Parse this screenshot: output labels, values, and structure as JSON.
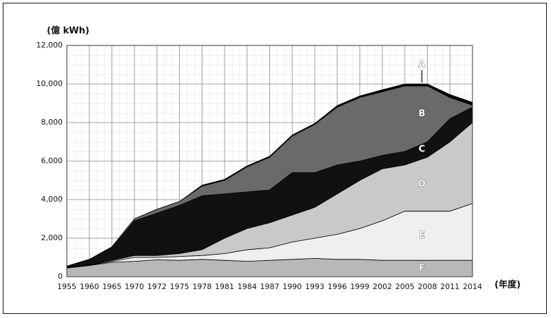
{
  "chart_data": {
    "type": "stacked-area",
    "y_label": "(億 kWh)",
    "x_label": "(年度)",
    "categories": [
      "1955",
      "1960",
      "1965",
      "1970",
      "1972",
      "1975",
      "1978",
      "1981",
      "1984",
      "1987",
      "1990",
      "1993",
      "1996",
      "1999",
      "2002",
      "2005",
      "2008",
      "2011",
      "2014"
    ],
    "series": [
      {
        "name": "F",
        "color": "#b8b8b8",
        "values": [
          450,
          580,
          750,
          800,
          880,
          850,
          900,
          850,
          800,
          850,
          900,
          950,
          900,
          900,
          850,
          850,
          850,
          850,
          850
        ]
      },
      {
        "name": "E",
        "color": "#efefef",
        "values": [
          30,
          20,
          50,
          200,
          120,
          200,
          200,
          350,
          600,
          650,
          900,
          1050,
          1300,
          1600,
          2050,
          2550,
          2550,
          2550,
          2950
        ]
      },
      {
        "name": "D",
        "color": "#c9c9c9",
        "values": [
          20,
          20,
          50,
          100,
          100,
          150,
          300,
          800,
          1100,
          1300,
          1400,
          1600,
          2100,
          2500,
          2700,
          2400,
          2800,
          3600,
          4200
        ]
      },
      {
        "name": "C",
        "color": "#111111",
        "values": [
          50,
          280,
          650,
          1800,
          2200,
          2500,
          2800,
          2300,
          1900,
          1700,
          2200,
          1800,
          1500,
          1000,
          700,
          700,
          800,
          1200,
          800
        ]
      },
      {
        "name": "B",
        "color": "#6a6a6a",
        "values": [
          0,
          0,
          50,
          100,
          200,
          200,
          500,
          700,
          1300,
          1700,
          1900,
          2500,
          3000,
          3300,
          3300,
          3400,
          2900,
          1100,
          100
        ]
      },
      {
        "name": "A",
        "color": "#000000",
        "values": [
          0,
          0,
          0,
          0,
          0,
          0,
          50,
          50,
          50,
          50,
          50,
          50,
          80,
          80,
          100,
          100,
          100,
          150,
          150
        ]
      }
    ],
    "ylim": [
      0,
      12000
    ],
    "yticks": [
      0,
      {
        "value": 2000,
        "label": "2,000"
      },
      {
        "value": 4000,
        "label": "4,000"
      },
      {
        "value": 6000,
        "label": "6,000"
      },
      {
        "value": 8000,
        "label": "8,000"
      },
      {
        "value": 10000,
        "label": "10,000"
      },
      {
        "value": 12000,
        "label": "12,000"
      }
    ],
    "grid": true
  }
}
